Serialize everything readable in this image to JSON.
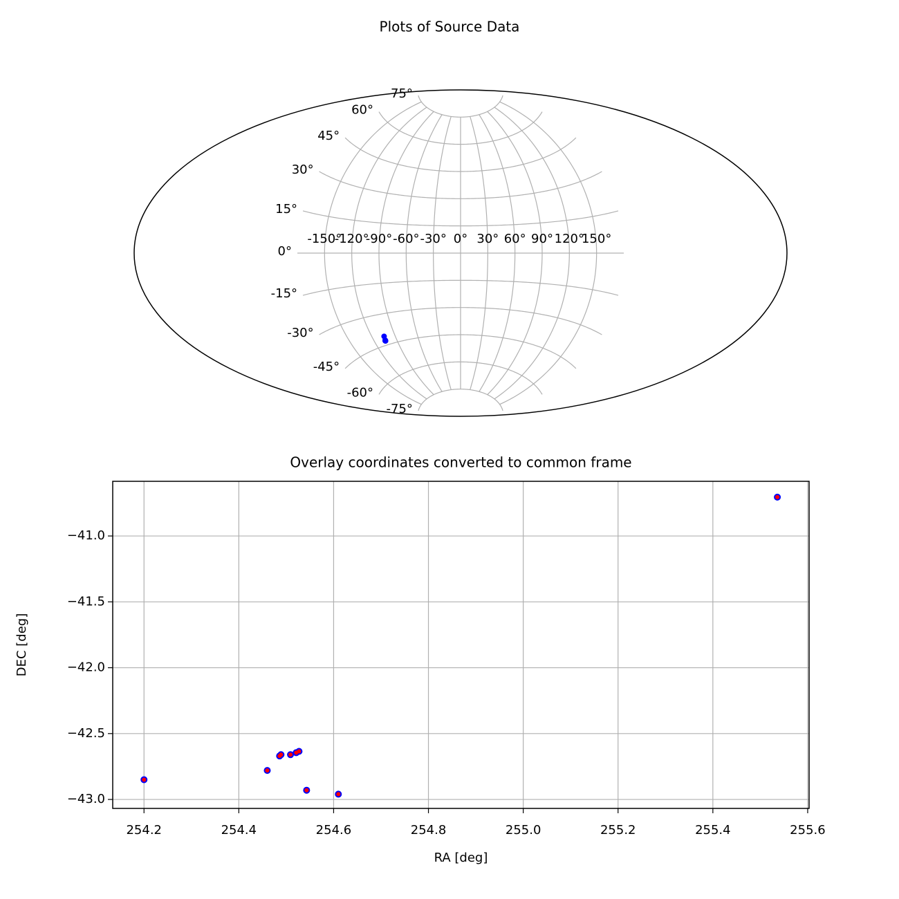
{
  "title": "Plots of Source Data",
  "chart_data": [
    {
      "type": "aitoff",
      "xlim": [
        -180,
        180
      ],
      "ylim": [
        -90,
        90
      ],
      "xticks": [
        {
          "value": -150,
          "label": "-150°"
        },
        {
          "value": -120,
          "label": "-120°"
        },
        {
          "value": -90,
          "label": "-90°"
        },
        {
          "value": -60,
          "label": "-60°"
        },
        {
          "value": -30,
          "label": "-30°"
        },
        {
          "value": 0,
          "label": "0°"
        },
        {
          "value": 30,
          "label": "30°"
        },
        {
          "value": 60,
          "label": "60°"
        },
        {
          "value": 90,
          "label": "90°"
        },
        {
          "value": 120,
          "label": "120°"
        },
        {
          "value": 150,
          "label": "150°"
        }
      ],
      "yticks": [
        {
          "value": -75,
          "label": "-75°"
        },
        {
          "value": -60,
          "label": "-60°"
        },
        {
          "value": -45,
          "label": "-45°"
        },
        {
          "value": -30,
          "label": "-30°"
        },
        {
          "value": -15,
          "label": "-15°"
        },
        {
          "value": 0,
          "label": "0°"
        },
        {
          "value": 15,
          "label": "15°"
        },
        {
          "value": 30,
          "label": "30°"
        },
        {
          "value": 45,
          "label": "45°"
        },
        {
          "value": 60,
          "label": "60°"
        },
        {
          "value": 75,
          "label": "75°"
        }
      ],
      "grid": true,
      "series": [
        {
          "color": "#0000ff",
          "x": [
            -105.8,
            -105.54,
            -105.514,
            -105.511,
            -105.491,
            -105.479,
            -105.473,
            -105.457,
            -105.39,
            -104.464
          ],
          "values": [
            -42.85,
            -42.78,
            -42.67,
            -42.66,
            -42.66,
            -42.645,
            -42.635,
            -42.93,
            -42.96,
            -40.705
          ]
        }
      ]
    },
    {
      "type": "scatter",
      "title": "Overlay coordinates converted to common frame",
      "xlabel": "RA [deg]",
      "ylabel": "DEC [deg]",
      "xlim": [
        254.134,
        255.603
      ],
      "ylim": [
        -43.068,
        -40.585
      ],
      "xticks": [
        254.2,
        254.4,
        254.6,
        254.8,
        {
          "value": 255,
          "label": "255.0"
        },
        255.2,
        255.4,
        255.6
      ],
      "yticks": [
        {
          "value": -43,
          "label": "−43.0"
        },
        {
          "value": -42.5,
          "label": "−42.5"
        },
        {
          "value": -42,
          "label": "−42.0"
        },
        {
          "value": -41.5,
          "label": "−41.5"
        },
        {
          "value": -41,
          "label": "−41.0"
        }
      ],
      "grid": true,
      "series": [
        {
          "color": "#0000ff",
          "x": [
            254.2,
            254.46,
            254.486,
            254.489,
            254.509,
            254.521,
            254.527,
            254.543,
            254.61,
            255.536
          ],
          "values": [
            -42.85,
            -42.78,
            -42.67,
            -42.66,
            -42.66,
            -42.645,
            -42.635,
            -42.93,
            -42.96,
            -40.705
          ]
        },
        {
          "color": "#ff0000",
          "x": [
            254.2,
            254.46,
            254.486,
            254.489,
            254.509,
            254.521,
            254.527,
            254.543,
            254.61,
            255.536
          ],
          "values": [
            -42.85,
            -42.78,
            -42.67,
            -42.66,
            -42.66,
            -42.645,
            -42.635,
            -42.93,
            -42.96,
            -40.705
          ]
        }
      ]
    }
  ]
}
